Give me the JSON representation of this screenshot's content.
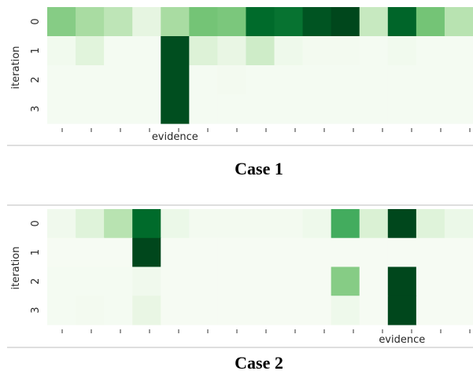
{
  "chart_data": [
    {
      "type": "heatmap",
      "caption": "Case 1",
      "ylabel": "iteration",
      "xlabel_annotation": "evidence",
      "xlabel_annotation_column": 4,
      "y_tick_labels": [
        "0",
        "1",
        "2",
        "3"
      ],
      "x_tick_count": 16,
      "colormap": "Greens",
      "value_range": [
        0,
        1
      ],
      "values": [
        [
          0.45,
          0.35,
          0.28,
          0.12,
          0.35,
          0.5,
          0.48,
          0.88,
          0.85,
          0.95,
          0.99,
          0.25,
          0.9,
          0.5,
          0.3
        ],
        [
          0.04,
          0.14,
          0.02,
          0.02,
          0.97,
          0.16,
          0.1,
          0.22,
          0.06,
          0.03,
          0.03,
          0.02,
          0.04,
          0.02,
          0.02
        ],
        [
          0.02,
          0.02,
          0.02,
          0.02,
          0.97,
          0.02,
          0.03,
          0.02,
          0.02,
          0.02,
          0.02,
          0.02,
          0.02,
          0.02,
          0.02
        ],
        [
          0.02,
          0.02,
          0.02,
          0.02,
          0.97,
          0.02,
          0.02,
          0.02,
          0.02,
          0.02,
          0.02,
          0.02,
          0.02,
          0.02,
          0.02
        ]
      ]
    },
    {
      "type": "heatmap",
      "caption": "Case 2",
      "ylabel": "iteration",
      "xlabel_annotation": "evidence",
      "xlabel_annotation_column": 12,
      "y_tick_labels": [
        "0",
        "1",
        "2",
        "3"
      ],
      "x_tick_count": 16,
      "colormap": "Greens",
      "value_range": [
        0,
        1
      ],
      "values": [
        [
          0.05,
          0.15,
          0.3,
          0.88,
          0.08,
          0.03,
          0.03,
          0.03,
          0.03,
          0.06,
          0.62,
          0.17,
          0.99,
          0.15,
          0.08
        ],
        [
          0.01,
          0.01,
          0.01,
          0.99,
          0.01,
          0.01,
          0.01,
          0.01,
          0.01,
          0.01,
          0.01,
          0.01,
          0.01,
          0.01,
          0.01
        ],
        [
          0.02,
          0.02,
          0.02,
          0.05,
          0.01,
          0.01,
          0.01,
          0.01,
          0.01,
          0.01,
          0.45,
          0.01,
          0.99,
          0.01,
          0.01
        ],
        [
          0.02,
          0.03,
          0.02,
          0.1,
          0.01,
          0.01,
          0.01,
          0.01,
          0.01,
          0.01,
          0.06,
          0.01,
          0.99,
          0.01,
          0.01
        ]
      ]
    }
  ]
}
